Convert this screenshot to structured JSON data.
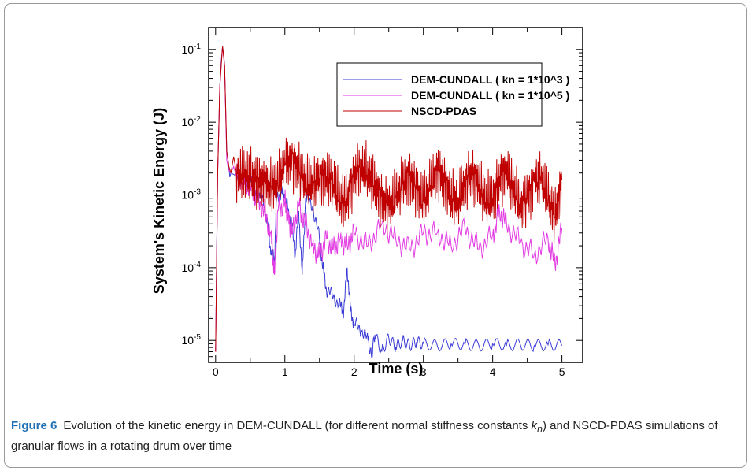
{
  "figure_label": "Figure 6",
  "caption": {
    "before_sub": "Evolution of the kinetic energy in DEM-CUNDALL (for different normal stiffness constants ",
    "k": "k",
    "sub": "n",
    "after_sub": ") and NSCD-PDAS simulations of granular flows in a rotating drum over time"
  },
  "colors": {
    "dem_1e3": "#3b3bd6",
    "dem_1e5": "#e23be2",
    "nscd": "#c00000"
  },
  "chart_data": {
    "type": "line",
    "title": "",
    "xlabel": "Time (s)",
    "ylabel": "System's Kinetic Energy (J)",
    "xlim": [
      -0.1,
      5.3
    ],
    "ylim": [
      5e-06,
      0.2
    ],
    "yscale": "log",
    "grid": false,
    "legend_position": "top-right",
    "x_ticks": [
      0,
      1,
      2,
      3,
      4,
      5
    ],
    "y_ticks": [
      1e-05,
      0.0001,
      0.001,
      0.01,
      0.1
    ],
    "y_tick_labels": [
      {
        "base": "10",
        "exp": "-5"
      },
      {
        "base": "10",
        "exp": "-4"
      },
      {
        "base": "10",
        "exp": "-3"
      },
      {
        "base": "10",
        "exp": "-2"
      },
      {
        "base": "10",
        "exp": "-1"
      }
    ],
    "series": [
      {
        "name": "DEM-CUNDALL ( kn = 1*10^3 )",
        "color": "#3b3bd6",
        "x": [
          0.0,
          0.03,
          0.06,
          0.1,
          0.13,
          0.16,
          0.19,
          0.22,
          0.3,
          0.4,
          0.5,
          0.6,
          0.7,
          0.75,
          0.8,
          0.85,
          0.88,
          0.95,
          1.0,
          1.05,
          1.1,
          1.15,
          1.2,
          1.25,
          1.3,
          1.4,
          1.5,
          1.55,
          1.6,
          1.7,
          1.8,
          1.85,
          1.9,
          1.95,
          2.0,
          2.1,
          2.2,
          2.25,
          2.3,
          2.4,
          2.5,
          2.6,
          2.7,
          2.8,
          2.9,
          3.0,
          3.2,
          3.4,
          3.6,
          3.8,
          4.0,
          4.2,
          4.4,
          4.6,
          4.8,
          5.0
        ],
        "y": [
          7e-06,
          0.002,
          0.03,
          0.11,
          0.06,
          0.004,
          0.0025,
          0.002,
          0.0018,
          0.0017,
          0.0015,
          0.0011,
          0.0007,
          0.0004,
          0.00016,
          0.00013,
          0.0009,
          0.0011,
          0.00095,
          0.0006,
          0.0004,
          0.00015,
          0.0006,
          8e-05,
          0.0009,
          0.0007,
          0.00025,
          0.0001,
          5e-05,
          4e-05,
          3e-05,
          2.5e-05,
          0.0001,
          2.5e-05,
          1.7e-05,
          1.4e-05,
          1e-05,
          6e-06,
          1.2e-05,
          7e-06,
          1.1e-05,
          8e-06,
          1e-05,
          8.5e-06,
          9.5e-06,
          9e-06,
          8.5e-06,
          9e-06,
          8.8e-06,
          8.5e-06,
          9e-06,
          8.6e-06,
          8.8e-06,
          8.5e-06,
          8.7e-06,
          8.5e-06
        ]
      },
      {
        "name": "DEM-CUNDALL ( kn = 1*10^5 )",
        "color": "#e23be2",
        "x": [
          0.0,
          0.03,
          0.06,
          0.1,
          0.13,
          0.16,
          0.19,
          0.22,
          0.3,
          0.4,
          0.5,
          0.6,
          0.7,
          0.8,
          0.85,
          0.9,
          1.0,
          1.05,
          1.1,
          1.2,
          1.3,
          1.4,
          1.5,
          1.6,
          1.7,
          1.8,
          1.9,
          2.0,
          2.2,
          2.4,
          2.6,
          2.8,
          3.0,
          3.2,
          3.4,
          3.6,
          3.8,
          4.0,
          4.1,
          4.2,
          4.4,
          4.6,
          4.8,
          4.9,
          5.0
        ],
        "y": [
          7e-06,
          0.002,
          0.03,
          0.11,
          0.06,
          0.003,
          0.0022,
          0.002,
          0.0018,
          0.0016,
          0.0013,
          0.0009,
          0.0006,
          0.0003,
          8e-05,
          0.0006,
          0.0008,
          0.0005,
          0.0003,
          0.0007,
          0.0004,
          0.0002,
          0.00015,
          0.00025,
          0.00018,
          0.00025,
          0.0002,
          0.0003,
          0.0002,
          0.0004,
          0.00025,
          0.00018,
          0.0003,
          0.0003,
          0.0002,
          0.00035,
          0.00018,
          0.00028,
          0.0006,
          0.0004,
          0.00022,
          0.00015,
          0.00025,
          0.00011,
          0.00035
        ]
      },
      {
        "name": "NSCD-PDAS",
        "color": "#c00000",
        "x": [
          0.0,
          0.03,
          0.06,
          0.1,
          0.13,
          0.16,
          0.19,
          0.22,
          0.3,
          0.4,
          0.5,
          0.6,
          0.7,
          0.8,
          0.9,
          1.0,
          1.1,
          1.2,
          1.3,
          1.4,
          1.5,
          1.6,
          1.7,
          1.8,
          1.9,
          2.0,
          2.1,
          2.2,
          2.3,
          2.4,
          2.5,
          2.6,
          2.7,
          2.8,
          2.9,
          3.0,
          3.1,
          3.2,
          3.3,
          3.4,
          3.5,
          3.6,
          3.7,
          3.8,
          3.9,
          4.0,
          4.1,
          4.2,
          4.3,
          4.4,
          4.5,
          4.6,
          4.7,
          4.8,
          4.9,
          5.0
        ],
        "y": [
          7e-06,
          0.002,
          0.03,
          0.11,
          0.06,
          0.004,
          0.0025,
          0.002,
          0.002,
          0.0019,
          0.0017,
          0.0016,
          0.0015,
          0.0013,
          0.0014,
          0.0025,
          0.003,
          0.0022,
          0.0015,
          0.0013,
          0.0017,
          0.0018,
          0.0014,
          0.0008,
          0.0009,
          0.0019,
          0.0024,
          0.0019,
          0.0013,
          0.0009,
          0.0007,
          0.0009,
          0.0014,
          0.0018,
          0.0012,
          0.0008,
          0.0013,
          0.0022,
          0.0016,
          0.0009,
          0.0008,
          0.0015,
          0.002,
          0.0014,
          0.0008,
          0.0009,
          0.0017,
          0.0021,
          0.0012,
          0.0007,
          0.0009,
          0.0015,
          0.0016,
          0.0009,
          0.0005,
          0.0016
        ]
      }
    ]
  }
}
